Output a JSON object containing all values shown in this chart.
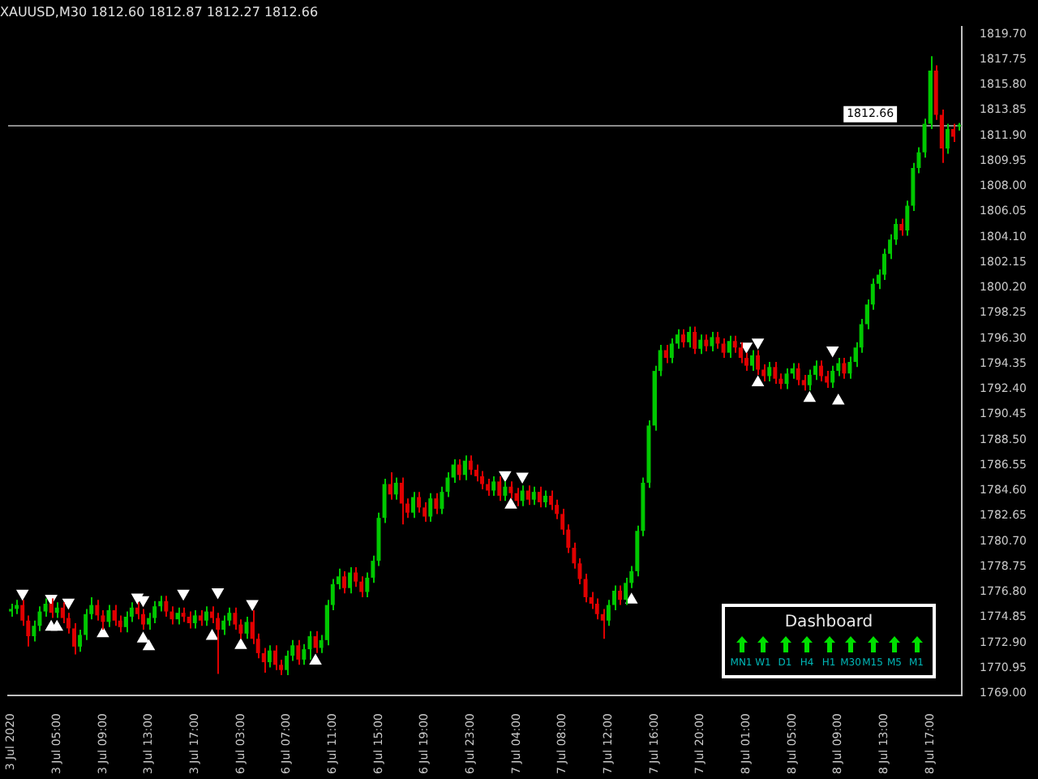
{
  "chart_data": {
    "type": "candlestick",
    "title": "XAUUSD,M30 1812.60 1812.87 1812.27 1812.66",
    "categories": [
      "3 Jul 2020",
      null,
      null,
      null,
      null,
      null,
      null,
      null,
      "3 Jul 05:00",
      null,
      null,
      null,
      null,
      null,
      null,
      null,
      "3 Jul 09:00",
      null,
      null,
      null,
      null,
      null,
      null,
      null,
      "3 Jul 13:00",
      null,
      null,
      null,
      null,
      null,
      null,
      null,
      "3 Jul 17:00",
      null,
      null,
      null,
      null,
      null,
      null,
      null,
      "6 Jul 03:00",
      null,
      null,
      null,
      null,
      null,
      null,
      null,
      "6 Jul 07:00",
      null,
      null,
      null,
      null,
      null,
      null,
      null,
      "6 Jul 11:00",
      null,
      null,
      null,
      null,
      null,
      null,
      null,
      "6 Jul 15:00",
      null,
      null,
      null,
      null,
      null,
      null,
      null,
      "6 Jul 19:00",
      null,
      null,
      null,
      null,
      null,
      null,
      null,
      "6 Jul 23:00",
      null,
      null,
      null,
      null,
      null,
      null,
      null,
      "7 Jul 04:00",
      null,
      null,
      null,
      null,
      null,
      null,
      null,
      "7 Jul 08:00",
      null,
      null,
      null,
      null,
      null,
      null,
      null,
      "7 Jul 12:00",
      null,
      null,
      null,
      null,
      null,
      null,
      null,
      "7 Jul 16:00",
      null,
      null,
      null,
      null,
      null,
      null,
      null,
      "7 Jul 20:00",
      null,
      null,
      null,
      null,
      null,
      null,
      null,
      "8 Jul 01:00",
      null,
      null,
      null,
      null,
      null,
      null,
      null,
      "8 Jul 05:00",
      null,
      null,
      null,
      null,
      null,
      null,
      null,
      "8 Jul 09:00",
      null,
      null,
      null,
      null,
      null,
      null,
      null,
      "8 Jul 13:00",
      null,
      null,
      null,
      null,
      null,
      null,
      null,
      "8 Jul 17:00",
      null,
      null,
      null,
      null,
      null
    ],
    "ohlc": [
      [
        1775.3,
        1775.9,
        1774.9,
        1775.5
      ],
      [
        1775.5,
        1776.2,
        1775.1,
        1775.8
      ],
      [
        1775.8,
        1776.2,
        1774.2,
        1774.6
      ],
      [
        1774.6,
        1775.0,
        1772.6,
        1773.4
      ],
      [
        1773.4,
        1774.6,
        1773.0,
        1774.2
      ],
      [
        1774.2,
        1775.7,
        1773.8,
        1775.3
      ],
      [
        1775.3,
        1776.3,
        1774.9,
        1775.9
      ],
      [
        1775.9,
        1776.3,
        1774.8,
        1775.2
      ],
      [
        1775.2,
        1776.0,
        1774.8,
        1775.6
      ],
      [
        1775.6,
        1776.0,
        1774.4,
        1774.8
      ],
      [
        1774.8,
        1775.2,
        1773.6,
        1774.0
      ],
      [
        1774.0,
        1774.4,
        1772.0,
        1772.6
      ],
      [
        1772.6,
        1773.9,
        1772.2,
        1773.5
      ],
      [
        1773.5,
        1775.5,
        1773.1,
        1775.1
      ],
      [
        1775.1,
        1776.4,
        1774.7,
        1775.8
      ],
      [
        1775.8,
        1776.2,
        1774.6,
        1775.0
      ],
      [
        1775.0,
        1775.4,
        1773.9,
        1774.5
      ],
      [
        1774.5,
        1775.8,
        1774.1,
        1775.4
      ],
      [
        1775.4,
        1775.8,
        1774.2,
        1774.6
      ],
      [
        1774.6,
        1775.0,
        1773.7,
        1774.1
      ],
      [
        1774.1,
        1775.3,
        1773.7,
        1774.9
      ],
      [
        1774.9,
        1776.0,
        1774.5,
        1775.6
      ],
      [
        1775.6,
        1776.0,
        1774.7,
        1775.1
      ],
      [
        1775.1,
        1775.5,
        1773.9,
        1774.3
      ],
      [
        1774.3,
        1775.2,
        1773.9,
        1774.8
      ],
      [
        1774.8,
        1776.1,
        1774.4,
        1775.7
      ],
      [
        1775.7,
        1776.5,
        1775.3,
        1776.1
      ],
      [
        1776.1,
        1776.5,
        1774.9,
        1775.3
      ],
      [
        1775.3,
        1775.7,
        1774.3,
        1774.7
      ],
      [
        1774.7,
        1775.6,
        1774.3,
        1775.2
      ],
      [
        1775.2,
        1775.6,
        1774.5,
        1774.9
      ],
      [
        1774.9,
        1775.3,
        1774.0,
        1774.4
      ],
      [
        1774.4,
        1775.4,
        1774.0,
        1775.0
      ],
      [
        1775.0,
        1775.4,
        1774.2,
        1774.6
      ],
      [
        1774.6,
        1775.7,
        1774.2,
        1775.3
      ],
      [
        1775.3,
        1775.7,
        1774.4,
        1774.8
      ],
      [
        1774.8,
        1775.2,
        1770.5,
        1773.9
      ],
      [
        1773.9,
        1775.0,
        1773.5,
        1774.6
      ],
      [
        1774.6,
        1775.6,
        1774.2,
        1775.2
      ],
      [
        1775.2,
        1775.6,
        1773.9,
        1774.3
      ],
      [
        1774.3,
        1774.7,
        1773.2,
        1773.6
      ],
      [
        1773.6,
        1774.9,
        1773.2,
        1774.5
      ],
      [
        1774.5,
        1775.4,
        1772.8,
        1773.2
      ],
      [
        1773.2,
        1773.6,
        1771.7,
        1772.1
      ],
      [
        1772.1,
        1772.5,
        1770.6,
        1771.4
      ],
      [
        1771.4,
        1772.7,
        1771.0,
        1772.3
      ],
      [
        1772.3,
        1772.7,
        1770.8,
        1771.2
      ],
      [
        1771.2,
        1771.6,
        1770.4,
        1770.8
      ],
      [
        1770.8,
        1772.3,
        1770.4,
        1771.9
      ],
      [
        1771.9,
        1773.1,
        1771.5,
        1772.7
      ],
      [
        1772.7,
        1773.1,
        1771.2,
        1771.6
      ],
      [
        1771.6,
        1772.8,
        1771.2,
        1772.4
      ],
      [
        1772.4,
        1773.8,
        1771.6,
        1773.4
      ],
      [
        1773.4,
        1773.8,
        1772.1,
        1772.5
      ],
      [
        1772.5,
        1773.5,
        1772.1,
        1773.1
      ],
      [
        1773.1,
        1776.2,
        1772.7,
        1775.8
      ],
      [
        1775.8,
        1777.8,
        1775.4,
        1777.4
      ],
      [
        1777.4,
        1778.6,
        1777.0,
        1778.0
      ],
      [
        1778.0,
        1778.4,
        1776.7,
        1777.1
      ],
      [
        1777.1,
        1778.7,
        1776.7,
        1778.3
      ],
      [
        1778.3,
        1778.7,
        1777.2,
        1777.6
      ],
      [
        1777.6,
        1778.0,
        1776.4,
        1776.8
      ],
      [
        1776.8,
        1778.3,
        1776.4,
        1777.9
      ],
      [
        1777.9,
        1779.6,
        1777.5,
        1779.2
      ],
      [
        1779.2,
        1782.9,
        1778.8,
        1782.5
      ],
      [
        1782.5,
        1785.5,
        1782.1,
        1785.1
      ],
      [
        1785.1,
        1786.0,
        1783.9,
        1784.3
      ],
      [
        1784.3,
        1785.6,
        1783.9,
        1785.2
      ],
      [
        1785.2,
        1785.6,
        1782.0,
        1783.6
      ],
      [
        1783.6,
        1784.0,
        1782.5,
        1782.9
      ],
      [
        1782.9,
        1784.5,
        1782.5,
        1784.1
      ],
      [
        1784.1,
        1784.5,
        1782.9,
        1783.3
      ],
      [
        1783.3,
        1783.7,
        1782.2,
        1782.6
      ],
      [
        1782.6,
        1784.4,
        1782.2,
        1784.0
      ],
      [
        1784.0,
        1784.4,
        1782.8,
        1783.2
      ],
      [
        1783.2,
        1784.9,
        1782.8,
        1784.5
      ],
      [
        1784.5,
        1786.0,
        1784.1,
        1785.6
      ],
      [
        1785.6,
        1787.0,
        1785.2,
        1786.6
      ],
      [
        1786.6,
        1787.0,
        1785.4,
        1785.8
      ],
      [
        1785.8,
        1787.3,
        1785.4,
        1786.9
      ],
      [
        1786.9,
        1787.3,
        1785.8,
        1786.2
      ],
      [
        1786.2,
        1786.6,
        1785.3,
        1785.7
      ],
      [
        1785.7,
        1786.1,
        1784.7,
        1785.1
      ],
      [
        1785.1,
        1785.5,
        1784.2,
        1784.6
      ],
      [
        1784.6,
        1785.7,
        1784.2,
        1785.3
      ],
      [
        1785.3,
        1785.7,
        1783.8,
        1784.2
      ],
      [
        1784.2,
        1785.3,
        1783.8,
        1784.9
      ],
      [
        1784.9,
        1785.3,
        1784.0,
        1784.4
      ],
      [
        1784.4,
        1784.8,
        1783.4,
        1783.8
      ],
      [
        1783.8,
        1785.0,
        1783.4,
        1784.6
      ],
      [
        1784.6,
        1785.0,
        1783.5,
        1783.9
      ],
      [
        1783.9,
        1784.9,
        1783.5,
        1784.5
      ],
      [
        1784.5,
        1784.9,
        1783.3,
        1783.7
      ],
      [
        1783.7,
        1784.6,
        1783.3,
        1784.2
      ],
      [
        1784.2,
        1784.6,
        1783.1,
        1783.5
      ],
      [
        1783.5,
        1783.9,
        1782.4,
        1782.8
      ],
      [
        1782.8,
        1783.2,
        1781.2,
        1781.6
      ],
      [
        1781.6,
        1782.0,
        1779.8,
        1780.2
      ],
      [
        1780.2,
        1780.6,
        1778.6,
        1779.0
      ],
      [
        1779.0,
        1779.4,
        1777.4,
        1777.8
      ],
      [
        1777.8,
        1778.2,
        1776.0,
        1776.4
      ],
      [
        1776.4,
        1776.8,
        1775.5,
        1775.9
      ],
      [
        1775.9,
        1776.3,
        1774.7,
        1775.1
      ],
      [
        1775.1,
        1775.5,
        1773.2,
        1774.6
      ],
      [
        1774.6,
        1776.2,
        1774.2,
        1775.8
      ],
      [
        1775.8,
        1777.3,
        1775.4,
        1776.9
      ],
      [
        1776.9,
        1777.3,
        1775.8,
        1776.2
      ],
      [
        1776.2,
        1777.9,
        1775.8,
        1777.5
      ],
      [
        1777.5,
        1778.8,
        1777.1,
        1778.4
      ],
      [
        1778.4,
        1781.9,
        1778.0,
        1781.5
      ],
      [
        1781.5,
        1785.6,
        1781.1,
        1785.2
      ],
      [
        1785.2,
        1790.0,
        1784.8,
        1789.6
      ],
      [
        1789.6,
        1794.2,
        1789.2,
        1793.8
      ],
      [
        1793.8,
        1795.8,
        1793.4,
        1795.4
      ],
      [
        1795.4,
        1795.8,
        1794.4,
        1794.8
      ],
      [
        1794.8,
        1796.3,
        1794.4,
        1795.9
      ],
      [
        1795.9,
        1797.0,
        1795.5,
        1796.6
      ],
      [
        1796.6,
        1797.0,
        1795.6,
        1796.0
      ],
      [
        1796.0,
        1797.2,
        1795.6,
        1796.8
      ],
      [
        1796.8,
        1797.2,
        1795.1,
        1795.5
      ],
      [
        1795.5,
        1796.6,
        1795.1,
        1796.2
      ],
      [
        1796.2,
        1796.6,
        1795.3,
        1795.7
      ],
      [
        1795.7,
        1796.8,
        1795.3,
        1796.4
      ],
      [
        1796.4,
        1796.8,
        1795.5,
        1795.9
      ],
      [
        1795.9,
        1796.3,
        1794.8,
        1795.2
      ],
      [
        1795.2,
        1796.5,
        1794.8,
        1796.1
      ],
      [
        1796.1,
        1796.5,
        1795.2,
        1795.6
      ],
      [
        1795.6,
        1796.0,
        1794.4,
        1794.8
      ],
      [
        1794.8,
        1795.2,
        1793.8,
        1794.2
      ],
      [
        1794.2,
        1795.4,
        1793.8,
        1795.0
      ],
      [
        1795.0,
        1795.4,
        1793.5,
        1793.9
      ],
      [
        1793.9,
        1794.3,
        1793.0,
        1793.4
      ],
      [
        1793.4,
        1794.5,
        1793.0,
        1794.1
      ],
      [
        1794.1,
        1794.5,
        1792.8,
        1793.2
      ],
      [
        1793.2,
        1793.6,
        1792.4,
        1792.8
      ],
      [
        1792.8,
        1794.0,
        1792.4,
        1793.6
      ],
      [
        1793.6,
        1794.4,
        1793.2,
        1794.0
      ],
      [
        1794.0,
        1794.4,
        1792.7,
        1793.1
      ],
      [
        1793.1,
        1793.5,
        1792.3,
        1792.7
      ],
      [
        1792.7,
        1793.9,
        1792.3,
        1793.5
      ],
      [
        1793.5,
        1794.6,
        1793.1,
        1794.2
      ],
      [
        1794.2,
        1794.6,
        1793.0,
        1793.4
      ],
      [
        1793.4,
        1793.8,
        1792.5,
        1792.9
      ],
      [
        1792.9,
        1794.2,
        1792.5,
        1793.8
      ],
      [
        1793.8,
        1794.8,
        1793.4,
        1794.4
      ],
      [
        1794.4,
        1794.8,
        1793.2,
        1793.6
      ],
      [
        1793.6,
        1794.9,
        1793.2,
        1794.5
      ],
      [
        1794.5,
        1796.0,
        1794.1,
        1795.6
      ],
      [
        1795.6,
        1797.8,
        1795.2,
        1797.4
      ],
      [
        1797.4,
        1799.3,
        1797.0,
        1798.9
      ],
      [
        1798.9,
        1800.9,
        1798.5,
        1800.5
      ],
      [
        1800.5,
        1801.6,
        1800.1,
        1801.2
      ],
      [
        1801.2,
        1803.2,
        1800.8,
        1802.8
      ],
      [
        1802.8,
        1804.3,
        1802.4,
        1803.9
      ],
      [
        1803.9,
        1805.5,
        1803.5,
        1805.1
      ],
      [
        1805.1,
        1805.5,
        1804.2,
        1804.6
      ],
      [
        1804.6,
        1806.9,
        1804.2,
        1806.5
      ],
      [
        1806.5,
        1809.8,
        1806.1,
        1809.4
      ],
      [
        1809.4,
        1811.0,
        1809.0,
        1810.6
      ],
      [
        1810.6,
        1813.2,
        1810.2,
        1812.8
      ],
      [
        1812.8,
        1818.0,
        1812.4,
        1816.9
      ],
      [
        1816.9,
        1817.3,
        1813.1,
        1813.5
      ],
      [
        1813.5,
        1813.9,
        1809.8,
        1810.9
      ],
      [
        1810.9,
        1812.8,
        1810.5,
        1812.4
      ],
      [
        1812.4,
        1812.8,
        1811.4,
        1811.8
      ],
      [
        1812.6,
        1812.87,
        1812.27,
        1812.66
      ]
    ],
    "series": [
      {
        "type": "scatter",
        "color": "#ffffff",
        "values": [
          null,
          null,
          1776.7,
          null,
          null,
          null,
          null,
          1776.3,
          null,
          null,
          1776.0,
          null,
          null,
          null,
          null,
          null,
          null,
          null,
          null,
          null,
          null,
          null,
          1776.4,
          1776.2,
          null,
          null,
          null,
          null,
          null,
          null,
          1776.7,
          null,
          null,
          null,
          null,
          null,
          1776.8,
          null,
          null,
          null,
          null,
          null,
          1775.9,
          null,
          null,
          null,
          null,
          null,
          null,
          null,
          null,
          null,
          null,
          null,
          null,
          null,
          null,
          null,
          null,
          null,
          null,
          null,
          null,
          null,
          null,
          null,
          null,
          null,
          null,
          null,
          null,
          null,
          null,
          null,
          null,
          null,
          null,
          null,
          null,
          null,
          null,
          null,
          null,
          null,
          null,
          null,
          1785.8,
          null,
          null,
          1785.7,
          null,
          null,
          null,
          null,
          null,
          null,
          null,
          null,
          null,
          null,
          null,
          null,
          null,
          null,
          null,
          null,
          null,
          null,
          null,
          null,
          null,
          null,
          null,
          null,
          null,
          null,
          null,
          null,
          null,
          null,
          null,
          null,
          null,
          null,
          null,
          null,
          null,
          null,
          1795.7,
          null,
          1796.0,
          null,
          null,
          null,
          null,
          null,
          null,
          null,
          null,
          null,
          null,
          null,
          null,
          1795.4,
          null,
          null,
          null,
          null,
          null,
          null,
          null,
          null,
          null,
          null,
          null,
          null,
          null,
          null,
          null,
          null,
          null,
          null,
          null,
          null,
          null,
          null
        ]
      },
      {
        "type": "scatter",
        "color": "#ffffff",
        "values": [
          null,
          null,
          null,
          null,
          null,
          null,
          null,
          1774.1,
          1774.1,
          null,
          null,
          null,
          null,
          null,
          null,
          null,
          1773.6,
          null,
          null,
          null,
          null,
          null,
          null,
          1773.2,
          1772.6,
          null,
          null,
          null,
          null,
          null,
          null,
          null,
          null,
          null,
          null,
          1773.4,
          null,
          null,
          null,
          null,
          1772.7,
          null,
          null,
          null,
          null,
          null,
          null,
          null,
          null,
          null,
          null,
          null,
          null,
          1771.5,
          null,
          null,
          null,
          null,
          null,
          null,
          null,
          null,
          null,
          null,
          null,
          null,
          null,
          null,
          null,
          null,
          null,
          null,
          null,
          null,
          null,
          null,
          null,
          null,
          null,
          null,
          null,
          null,
          null,
          null,
          null,
          null,
          null,
          1783.5,
          null,
          null,
          null,
          null,
          null,
          null,
          null,
          null,
          null,
          null,
          null,
          null,
          null,
          null,
          null,
          null,
          null,
          null,
          null,
          null,
          1776.2,
          null,
          null,
          null,
          null,
          null,
          null,
          null,
          null,
          null,
          null,
          null,
          null,
          null,
          null,
          null,
          null,
          null,
          null,
          null,
          null,
          null,
          1792.9,
          null,
          null,
          null,
          null,
          null,
          null,
          null,
          null,
          1791.7,
          null,
          null,
          null,
          null,
          1791.5,
          null,
          null,
          null,
          null,
          null,
          null,
          null,
          null,
          null,
          null,
          null,
          null,
          null,
          null,
          null,
          null,
          null,
          null,
          null,
          null,
          null
        ]
      }
    ],
    "marker": "triangle",
    "ylim": [
      1768.85,
      1820.25
    ],
    "yticks": [
      {
        "value": 1769.0,
        "label": "1769.00"
      },
      {
        "value": 1770.95,
        "label": "1770.95"
      },
      {
        "value": 1772.9,
        "label": "1772.90"
      },
      {
        "value": 1774.85,
        "label": "1774.85"
      },
      {
        "value": 1776.8,
        "label": "1776.80"
      },
      {
        "value": 1778.75,
        "label": "1778.75"
      },
      {
        "value": 1780.7,
        "label": "1780.70"
      },
      {
        "value": 1782.65,
        "label": "1782.65"
      },
      {
        "value": 1784.6,
        "label": "1784.60"
      },
      {
        "value": 1786.55,
        "label": "1786.55"
      },
      {
        "value": 1788.5,
        "label": "1788.50"
      },
      {
        "value": 1790.45,
        "label": "1790.45"
      },
      {
        "value": 1792.4,
        "label": "1792.40"
      },
      {
        "value": 1794.35,
        "label": "1794.35"
      },
      {
        "value": 1796.3,
        "label": "1796.30"
      },
      {
        "value": 1798.25,
        "label": "1798.25"
      },
      {
        "value": 1800.2,
        "label": "1800.20"
      },
      {
        "value": 1802.15,
        "label": "1802.15"
      },
      {
        "value": 1804.1,
        "label": "1804.10"
      },
      {
        "value": 1806.05,
        "label": "1806.05"
      },
      {
        "value": 1808.0,
        "label": "1808.00"
      },
      {
        "value": 1809.95,
        "label": "1809.95"
      },
      {
        "value": 1811.9,
        "label": "1811.90"
      },
      {
        "value": 1813.85,
        "label": "1813.85"
      },
      {
        "value": 1815.8,
        "label": "1815.80"
      },
      {
        "value": 1817.75,
        "label": "1817.75"
      },
      {
        "value": 1819.7,
        "label": "1819.70"
      }
    ],
    "ref_lines": [
      {
        "axis": "y",
        "value": 1812.66,
        "label": "1812.66",
        "color": "#8c8c8c"
      }
    ],
    "annotations": [
      "Dashboard",
      "MN1",
      "W1",
      "D1",
      "H4",
      "H1",
      "M30",
      "M15",
      "M5",
      "M1"
    ]
  }
}
